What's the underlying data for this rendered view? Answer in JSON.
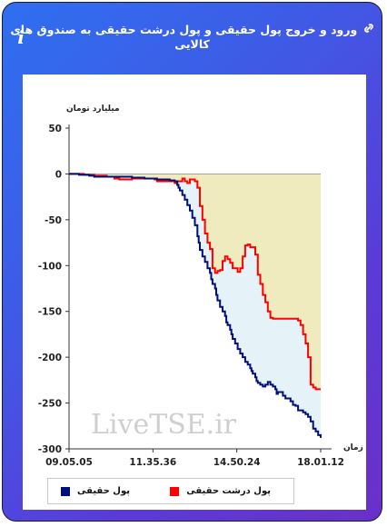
{
  "header": {
    "title": "ورود و خروج پول حقیقی و پول درشت حقیقی به صندوق های کالایی",
    "info_icon": "i"
  },
  "chart_data": {
    "type": "area",
    "ylabel": "میلیارد تومان",
    "xlabel": "زمان",
    "ylim": [
      -300,
      50
    ],
    "yticks": [
      50,
      0,
      -50,
      -100,
      -150,
      -200,
      -250,
      -300
    ],
    "xticks": [
      "09.05.05",
      "11.35.36",
      "14.50.24",
      "18.01.12"
    ],
    "xrange": [
      0,
      100
    ],
    "watermark": "LiveTSE.ir",
    "series": [
      {
        "name": "پول حقیقی",
        "color": "#00107a",
        "fill": "#e5f2f8",
        "x": [
          0,
          3,
          4,
          8,
          10,
          16,
          20,
          25,
          30,
          35,
          40,
          42,
          43,
          43.5,
          44,
          45,
          46,
          47,
          48,
          49,
          50,
          51,
          51.5,
          52,
          53,
          54,
          55,
          56,
          56.5,
          57,
          58,
          58.5,
          59,
          60,
          61,
          62,
          62.5,
          63,
          64,
          64.5,
          65,
          66,
          67,
          68,
          69,
          70,
          71,
          72,
          72.5,
          73,
          74,
          74.5,
          75,
          76,
          77,
          78,
          79,
          80,
          81,
          82,
          82.5,
          83,
          84,
          85,
          86,
          87,
          88,
          89,
          90,
          91,
          92,
          93,
          94,
          95,
          96,
          97,
          98,
          99,
          100
        ],
        "values": [
          0,
          0,
          -1,
          -2,
          -3,
          -3,
          -3,
          -4,
          -5,
          -6,
          -7,
          -8,
          -12,
          -15,
          -18,
          -23,
          -28,
          -34,
          -40,
          -48,
          -56,
          -68,
          -75,
          -83,
          -90,
          -96,
          -103,
          -108,
          -115,
          -120,
          -125,
          -132,
          -138,
          -145,
          -150,
          -155,
          -162,
          -165,
          -170,
          -175,
          -180,
          -185,
          -191,
          -196,
          -200,
          -205,
          -208,
          -212,
          -215,
          -218,
          -222,
          -226,
          -228,
          -230,
          -232,
          -230,
          -227,
          -230,
          -232,
          -235,
          -240,
          -238,
          -238,
          -242,
          -245,
          -245,
          -248,
          -252,
          -253,
          -258,
          -258,
          -260,
          -262,
          -265,
          -270,
          -278,
          -281,
          -285,
          -288
        ]
      },
      {
        "name": "پول درشت حقیقی",
        "color": "#ff0000",
        "fill": "#efebbf",
        "x": [
          0,
          5,
          6,
          10,
          15,
          18,
          20,
          23,
          25,
          28,
          30,
          34,
          35,
          40,
          42,
          43,
          45,
          46,
          47,
          48,
          50,
          51,
          52,
          53,
          54,
          55,
          56,
          57,
          58,
          59,
          60,
          61,
          62,
          63,
          64,
          65,
          66,
          67,
          68,
          69,
          70,
          71,
          72,
          73,
          74,
          75,
          76,
          77,
          78,
          79,
          80,
          81,
          82,
          83,
          84,
          85,
          86,
          87,
          88,
          89,
          90,
          91,
          92,
          93,
          94,
          95,
          96,
          97,
          98,
          99,
          100
        ],
        "values": [
          0,
          0,
          -1,
          -2,
          -3,
          -5,
          -6,
          -6,
          -5,
          -5,
          -5,
          -6,
          -8,
          -8,
          -10,
          -8,
          -5,
          -8,
          -10,
          -6,
          -8,
          -15,
          -35,
          -50,
          -65,
          -75,
          -82,
          -103,
          -108,
          -106,
          -105,
          -95,
          -90,
          -93,
          -97,
          -103,
          -103,
          -107,
          -103,
          -90,
          -78,
          -77,
          -80,
          -80,
          -88,
          -110,
          -120,
          -132,
          -140,
          -150,
          -157,
          -158,
          -158,
          -158,
          -158,
          -158,
          -158,
          -158,
          -158,
          -158,
          -158,
          -160,
          -165,
          -175,
          -185,
          -200,
          -230,
          -233,
          -235,
          -235,
          -235
        ]
      }
    ]
  }
}
